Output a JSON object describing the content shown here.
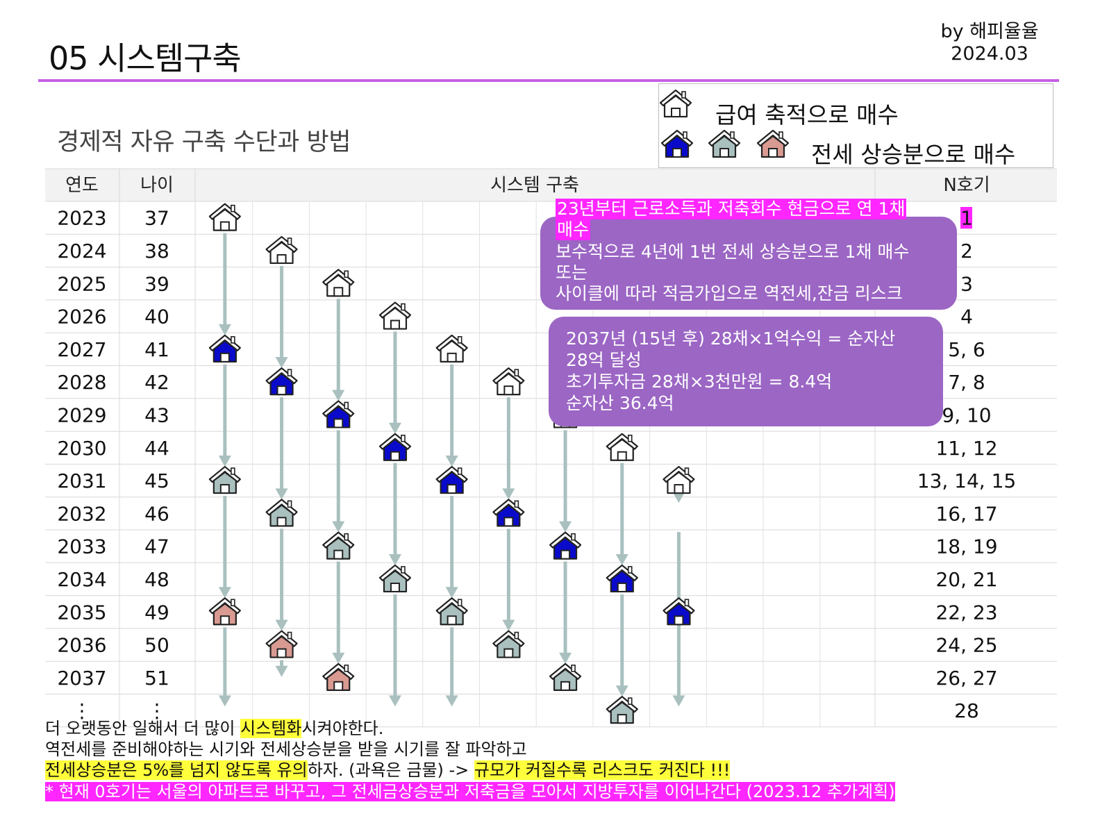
{
  "header": {
    "title": "05 시스템구축",
    "byline": "by 해피율율",
    "date": "2024.03",
    "subtitle": "경제적 자유 구축 수단과 방법"
  },
  "legend": {
    "salary_label": "급여 축적으로 매수",
    "jeonse_label": "전세 상승분으로 매수"
  },
  "table": {
    "headers": {
      "year": "연도",
      "age": "나이",
      "system": "시스템 구축",
      "count": "N호기"
    },
    "rows": [
      {
        "year": "2023",
        "age": "37",
        "count": "1"
      },
      {
        "year": "2024",
        "age": "38",
        "count": "2"
      },
      {
        "year": "2025",
        "age": "39",
        "count": "3"
      },
      {
        "year": "2026",
        "age": "40",
        "count": "4"
      },
      {
        "year": "2027",
        "age": "41",
        "count": "5, 6"
      },
      {
        "year": "2028",
        "age": "42",
        "count": "7, 8"
      },
      {
        "year": "2029",
        "age": "43",
        "count": "9, 10"
      },
      {
        "year": "2030",
        "age": "44",
        "count": "11, 12"
      },
      {
        "year": "2031",
        "age": "45",
        "count": "13, 14, 15"
      },
      {
        "year": "2032",
        "age": "46",
        "count": "16, 17"
      },
      {
        "year": "2033",
        "age": "47",
        "count": "18, 19"
      },
      {
        "year": "2034",
        "age": "48",
        "count": "20, 21"
      },
      {
        "year": "2035",
        "age": "49",
        "count": "22, 23"
      },
      {
        "year": "2036",
        "age": "50",
        "count": "24, 25"
      },
      {
        "year": "2037",
        "age": "51",
        "count": "26, 27"
      },
      {
        "year": "⋮",
        "age": "⋮",
        "count": "28"
      }
    ]
  },
  "houses": [
    {
      "col": 0,
      "row": 0,
      "type": "outline"
    },
    {
      "col": 1,
      "row": 1,
      "type": "outline"
    },
    {
      "col": 2,
      "row": 2,
      "type": "outline"
    },
    {
      "col": 3,
      "row": 3,
      "type": "outline"
    },
    {
      "col": 0,
      "row": 4,
      "type": "blue"
    },
    {
      "col": 4,
      "row": 4,
      "type": "outline"
    },
    {
      "col": 1,
      "row": 5,
      "type": "blue"
    },
    {
      "col": 5,
      "row": 5,
      "type": "outline"
    },
    {
      "col": 2,
      "row": 6,
      "type": "blue"
    },
    {
      "col": 6,
      "row": 6,
      "type": "outline"
    },
    {
      "col": 3,
      "row": 7,
      "type": "blue"
    },
    {
      "col": 7,
      "row": 7,
      "type": "outline"
    },
    {
      "col": 0,
      "row": 8,
      "type": "gray"
    },
    {
      "col": 4,
      "row": 8,
      "type": "blue"
    },
    {
      "col": 8,
      "row": 8,
      "type": "outline"
    },
    {
      "col": 1,
      "row": 9,
      "type": "gray"
    },
    {
      "col": 5,
      "row": 9,
      "type": "blue"
    },
    {
      "col": 2,
      "row": 10,
      "type": "gray"
    },
    {
      "col": 6,
      "row": 10,
      "type": "blue"
    },
    {
      "col": 3,
      "row": 11,
      "type": "gray"
    },
    {
      "col": 7,
      "row": 11,
      "type": "blue"
    },
    {
      "col": 0,
      "row": 12,
      "type": "pink"
    },
    {
      "col": 4,
      "row": 12,
      "type": "gray"
    },
    {
      "col": 8,
      "row": 12,
      "type": "blue"
    },
    {
      "col": 1,
      "row": 13,
      "type": "pink"
    },
    {
      "col": 5,
      "row": 13,
      "type": "gray"
    },
    {
      "col": 2,
      "row": 14,
      "type": "pink"
    },
    {
      "col": 6,
      "row": 14,
      "type": "gray"
    },
    {
      "col": 7,
      "row": 15,
      "type": "gray"
    }
  ],
  "arrows": [
    {
      "col": 0,
      "from": 0,
      "to": 4
    },
    {
      "col": 0,
      "from": 4,
      "to": 8
    },
    {
      "col": 0,
      "from": 8,
      "to": 12
    },
    {
      "col": 0,
      "from": 12,
      "to": 15.3
    },
    {
      "col": 1,
      "from": 1,
      "to": 5
    },
    {
      "col": 1,
      "from": 5,
      "to": 9
    },
    {
      "col": 1,
      "from": 9,
      "to": 13
    },
    {
      "col": 1,
      "from": 13,
      "to": 14.4
    },
    {
      "col": 2,
      "from": 2,
      "to": 6
    },
    {
      "col": 2,
      "from": 6,
      "to": 10
    },
    {
      "col": 2,
      "from": 10,
      "to": 14
    },
    {
      "col": 3,
      "from": 3,
      "to": 7
    },
    {
      "col": 3,
      "from": 7,
      "to": 11
    },
    {
      "col": 3,
      "from": 11,
      "to": 15.3
    },
    {
      "col": 4,
      "from": 4,
      "to": 8
    },
    {
      "col": 4,
      "from": 8,
      "to": 12
    },
    {
      "col": 4,
      "from": 12,
      "to": 15.3
    },
    {
      "col": 5,
      "from": 5,
      "to": 9
    },
    {
      "col": 5,
      "from": 9,
      "to": 13
    },
    {
      "col": 6,
      "from": 6,
      "to": 10
    },
    {
      "col": 6,
      "from": 10,
      "to": 14
    },
    {
      "col": 7,
      "from": 7,
      "to": 11
    },
    {
      "col": 7,
      "from": 11,
      "to": 15
    },
    {
      "col": 8,
      "from": 8,
      "to": 9.1
    },
    {
      "col": 8,
      "from": 9.1,
      "to": 15.3
    }
  ],
  "notes": {
    "note1_highlight_a": "23년부터 근로소득과 저축회수 현금으로 연 1채",
    "note1_highlight_b": "매수",
    "note1_line1": "보수적으로 4년에 1번 전세 상승분으로 1채 매수",
    "note1_line2": "또는",
    "note1_line3": "사이클에 따라 적금가입으로 역전세,잔금 리스크",
    "note2_line1": "2037년 (15년  후) 28채×1억수익 = 순자산",
    "note2_line2": "28억 달성",
    "note2_line3": "초기투자금 28채×3천만원 = 8.4억",
    "note2_line4": "순자산 36.4억"
  },
  "footer": {
    "line1_a": "더 오랫동안 일해서 더 많이 ",
    "line1_hl": "시스템화",
    "line1_b": "시켜야한다.",
    "line2": "역전세를 준비해야하는 시기와 전세상승분을 받을 시기를 잘 파악하고",
    "line3_hl": "전세상승분은 5%를 넘지 않도록 유의",
    "line3_b": "하자. (과욕은 금물) -> ",
    "line3_hl2": "규모가 커질수록 리스크도 커진다 !!!",
    "line4": "* 현재 0호기는 서울의 아파트로 바꾸고, 그 전세금상승분과 저축금을 모아서 지방투자를 이어나간다 (2023.12 추가계획)"
  },
  "colors": {
    "accent_rule": "#c561e6",
    "note_bg": "#9b66c4",
    "highlight_magenta": "#ff26ff",
    "highlight_yellow": "#ffff3b",
    "arrow": "#a9c0bf",
    "house_blue": "#0a0acb",
    "house_gray": "#a9c0bf",
    "house_pink": "#d99a92"
  }
}
